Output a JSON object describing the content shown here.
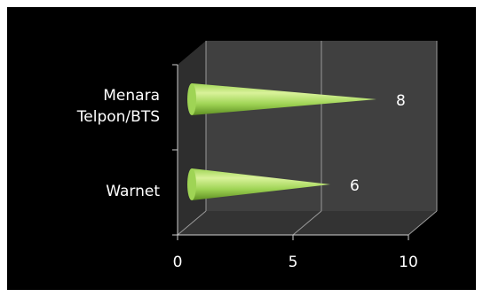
{
  "chart_data": {
    "type": "bar",
    "style": "3d-cone-horizontal",
    "categories": [
      "Menara Telpon/BTS",
      "Warnet"
    ],
    "category_lines": [
      [
        "Menara",
        "Telpon/BTS"
      ],
      [
        "Warnet"
      ]
    ],
    "values": [
      8,
      6
    ],
    "data_labels": [
      "8",
      "6"
    ],
    "xlim": [
      0,
      10
    ],
    "x_ticks": [
      "0",
      "5",
      "10"
    ],
    "grid": true,
    "legend": "none",
    "colors": {
      "background": "#000000",
      "back_wall": "#404040",
      "side_wall": "#2e2e2e",
      "floor": "#333333",
      "gridline": "#9a9a9a",
      "axis": "#cfcfcf",
      "text": "#ffffff",
      "cone_light": "#d9f29a",
      "cone_mid": "#9fd455",
      "cone_dark": "#5e8f22"
    }
  }
}
